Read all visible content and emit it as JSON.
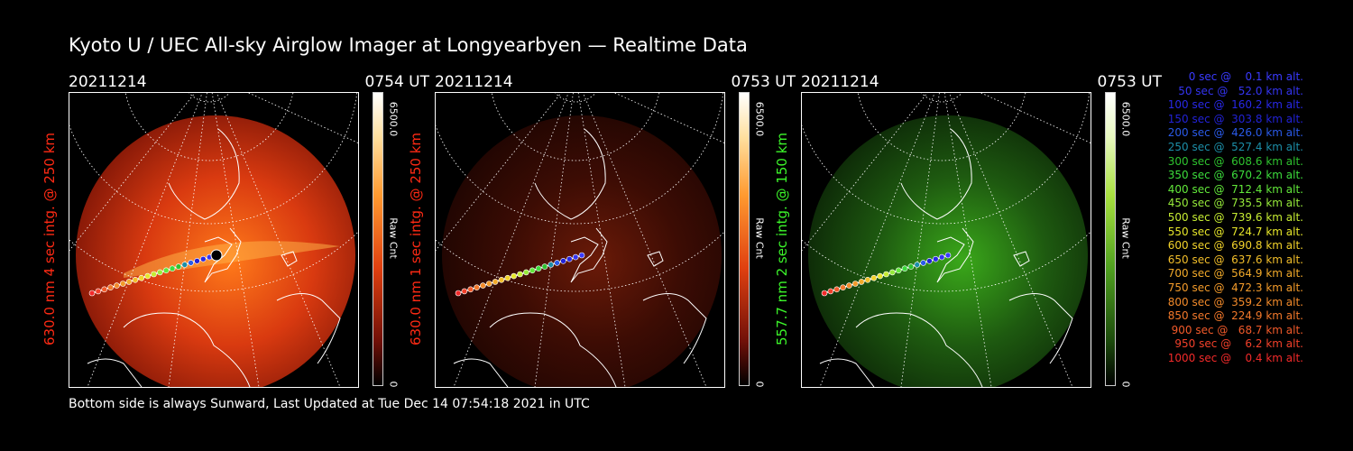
{
  "title": "Kyoto U / UEC All-sky Airglow Imager at Longyearbyen — Realtime Data",
  "footer": "Bottom side is always Sunward, Last Updated at Tue Dec 14 07:54:18 2021 in UTC",
  "panels": [
    {
      "date": "20211214",
      "time": "0754 UT",
      "ylabel": "630.0 nm 4 sec intg. @ 250 km",
      "label_color": "#ff2a14",
      "cbar_max": "6500.0",
      "cbar_unit": "Raw Cnt",
      "cbar_min": "0",
      "theme": "red",
      "intensity": "strong"
    },
    {
      "date": "20211214",
      "time": "0753 UT",
      "ylabel": "630.0 nm 1 sec intg. @ 250 km",
      "label_color": "#ff2a14",
      "cbar_max": "6500.0",
      "cbar_unit": "Raw Cnt",
      "cbar_min": "0",
      "theme": "red",
      "intensity": "weak"
    },
    {
      "date": "20211214",
      "time": "0753 UT",
      "ylabel": "557.7 nm 2 sec intg. @ 150 km",
      "label_color": "#3cf52a",
      "cbar_max": "6500.0",
      "cbar_unit": "Raw Cnt",
      "cbar_min": "0",
      "theme": "green",
      "intensity": "medium"
    }
  ],
  "legend": [
    {
      "text": "0 sec @    0.1 km alt.",
      "color": "#3a3aff"
    },
    {
      "text": "50 sec @   52.0 km alt.",
      "color": "#3434f0"
    },
    {
      "text": "100 sec @  160.2 km alt.",
      "color": "#2828e6"
    },
    {
      "text": "150 sec @  303.8 km alt.",
      "color": "#2222d6"
    },
    {
      "text": "200 sec @  426.0 km alt.",
      "color": "#2a5ae8"
    },
    {
      "text": "250 sec @  527.4 km alt.",
      "color": "#1c8ea8"
    },
    {
      "text": "300 sec @  608.6 km alt.",
      "color": "#2ec22e"
    },
    {
      "text": "350 sec @  670.2 km alt.",
      "color": "#3cdc3c"
    },
    {
      "text": "400 sec @  712.4 km alt.",
      "color": "#62e83a"
    },
    {
      "text": "450 sec @  735.5 km alt.",
      "color": "#96ea3a"
    },
    {
      "text": "500 sec @  739.6 km alt.",
      "color": "#c6ec32"
    },
    {
      "text": "550 sec @  724.7 km alt.",
      "color": "#e6e62a"
    },
    {
      "text": "600 sec @  690.8 km alt.",
      "color": "#f2d22a"
    },
    {
      "text": "650 sec @  637.6 km alt.",
      "color": "#f2be2a"
    },
    {
      "text": "700 sec @  564.9 km alt.",
      "color": "#f2aa2a"
    },
    {
      "text": "750 sec @  472.3 km alt.",
      "color": "#f29a2a"
    },
    {
      "text": "800 sec @  359.2 km alt.",
      "color": "#f28a2a"
    },
    {
      "text": "850 sec @  224.9 km alt.",
      "color": "#f2782a"
    },
    {
      "text": "900 sec @   68.7 km alt.",
      "color": "#f25a2a"
    },
    {
      "text": "950 sec @    6.2 km alt.",
      "color": "#f2402a"
    },
    {
      "text": "1000 sec @    0.4 km alt.",
      "color": "#f22a2a"
    }
  ]
}
